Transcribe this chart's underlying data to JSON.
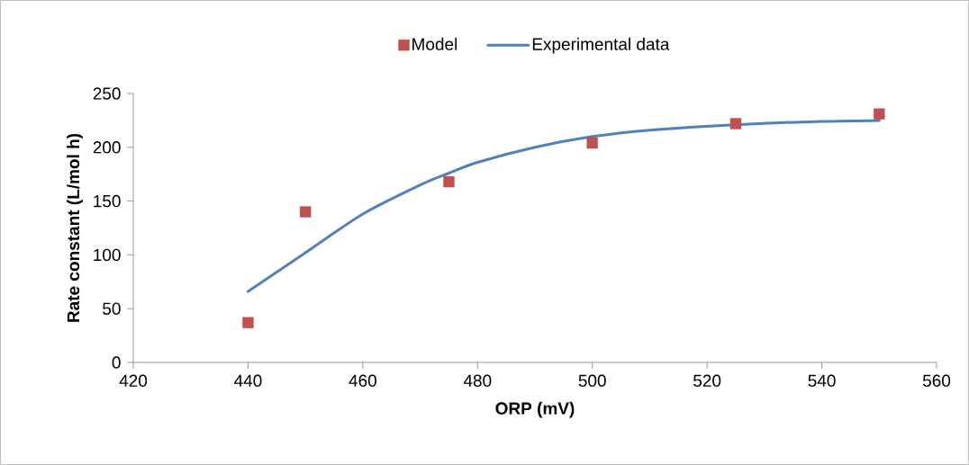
{
  "chart_data": {
    "type": "line",
    "xlabel": "ORP (mV)",
    "ylabel": "Rate constant  (L/mol h)",
    "xlim": [
      420,
      560
    ],
    "xticks": [
      420,
      440,
      460,
      480,
      500,
      520,
      540,
      560
    ],
    "ylim": [
      0,
      250
    ],
    "yticks": [
      0,
      50,
      100,
      150,
      200,
      250
    ],
    "legend": "top",
    "grid": false,
    "series": [
      {
        "name": "Model",
        "type": "scatter",
        "marker": "square",
        "color": "#c0504d",
        "x": [
          440,
          450,
          475,
          500,
          525,
          550
        ],
        "values": [
          37,
          140,
          168,
          204,
          222,
          231
        ]
      },
      {
        "name": "Experimental data",
        "marker": "none",
        "line_style": "solid",
        "color": "#4f81bd",
        "x": [
          440,
          450,
          460,
          470,
          475,
          480,
          490,
          500,
          510,
          525,
          540,
          550
        ],
        "values": [
          66,
          102,
          138,
          165,
          176,
          186,
          200,
          210,
          216,
          221,
          224,
          225
        ]
      }
    ]
  }
}
